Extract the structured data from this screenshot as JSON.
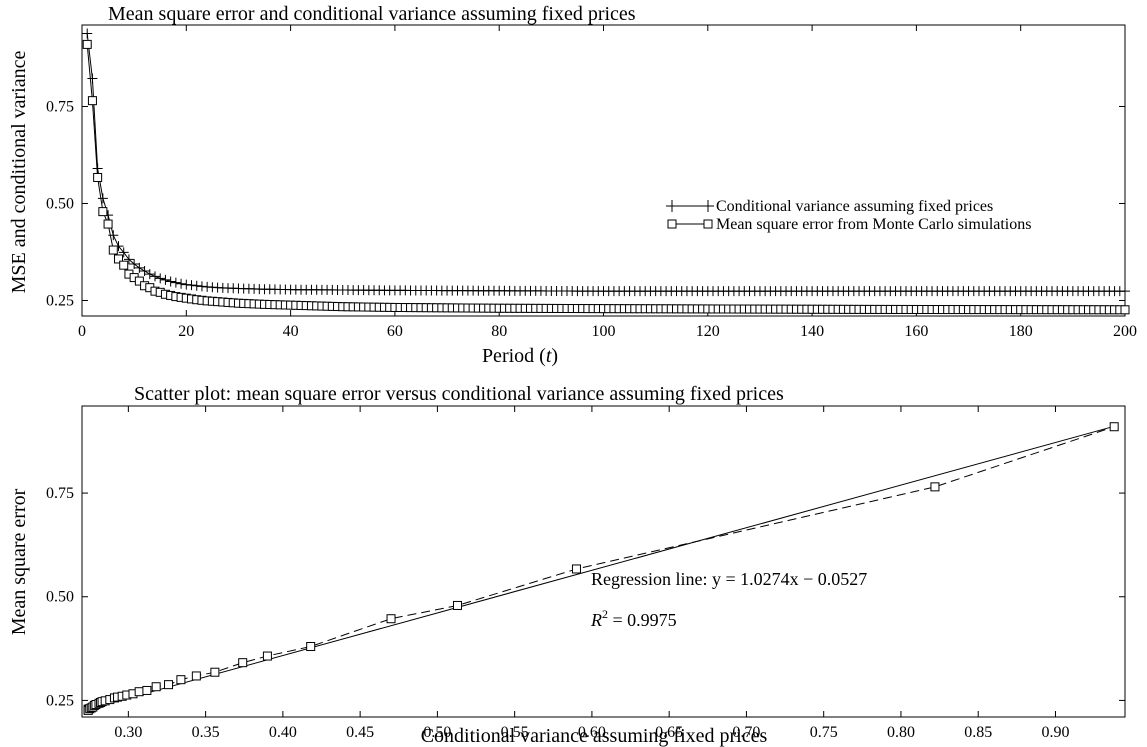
{
  "chart_data": [
    {
      "type": "line",
      "title": "Mean square error and conditional variance assuming fixed prices",
      "xlabel": "Period",
      "xlabel_var": "t",
      "ylabel": "MSE and conditional variance",
      "xlim": [
        0,
        200
      ],
      "ylim": [
        0.21,
        0.96
      ],
      "xticks": [
        0,
        20,
        40,
        60,
        80,
        100,
        120,
        140,
        160,
        180,
        200
      ],
      "yticks": [
        0.25,
        0.5,
        0.75
      ],
      "legend_position": "right",
      "series": [
        {
          "name": "Conditional variance assuming fixed prices",
          "marker": "plus",
          "values": [
            [
              1,
              0.938
            ],
            [
              2,
              0.822
            ],
            [
              3,
              0.59
            ],
            [
              4,
              0.513
            ],
            [
              5,
              0.47
            ],
            [
              6,
              0.418
            ],
            [
              7,
              0.39
            ],
            [
              8,
              0.374
            ],
            [
              9,
              0.356
            ],
            [
              10,
              0.344
            ],
            [
              11,
              0.334
            ],
            [
              12,
              0.326
            ],
            [
              13,
              0.318
            ],
            [
              14,
              0.312
            ],
            [
              15,
              0.307
            ],
            [
              16,
              0.303
            ],
            [
              17,
              0.299
            ],
            [
              18,
              0.296
            ],
            [
              19,
              0.293
            ],
            [
              20,
              0.291
            ],
            [
              22,
              0.288
            ],
            [
              24,
              0.285
            ],
            [
              26,
              0.283
            ],
            [
              28,
              0.282
            ],
            [
              30,
              0.281
            ],
            [
              35,
              0.279
            ],
            [
              40,
              0.278
            ],
            [
              50,
              0.277
            ],
            [
              60,
              0.276
            ],
            [
              80,
              0.275
            ],
            [
              100,
              0.274
            ],
            [
              150,
              0.274
            ],
            [
              200,
              0.274
            ]
          ]
        },
        {
          "name": "Mean square error from Monte Carlo simulations",
          "marker": "square",
          "values": [
            [
              1,
              0.91
            ],
            [
              2,
              0.765
            ],
            [
              3,
              0.567
            ],
            [
              4,
              0.479
            ],
            [
              5,
              0.447
            ],
            [
              6,
              0.38
            ],
            [
              7,
              0.357
            ],
            [
              8,
              0.341
            ],
            [
              9,
              0.318
            ],
            [
              10,
              0.309
            ],
            [
              11,
              0.3
            ],
            [
              12,
              0.288
            ],
            [
              13,
              0.283
            ],
            [
              14,
              0.274
            ],
            [
              15,
              0.271
            ],
            [
              16,
              0.266
            ],
            [
              17,
              0.263
            ],
            [
              18,
              0.26
            ],
            [
              19,
              0.258
            ],
            [
              20,
              0.256
            ],
            [
              22,
              0.252
            ],
            [
              24,
              0.249
            ],
            [
              26,
              0.247
            ],
            [
              28,
              0.245
            ],
            [
              30,
              0.243
            ],
            [
              35,
              0.24
            ],
            [
              40,
              0.238
            ],
            [
              50,
              0.234
            ],
            [
              60,
              0.232
            ],
            [
              80,
              0.23
            ],
            [
              100,
              0.229
            ],
            [
              150,
              0.227
            ],
            [
              200,
              0.226
            ]
          ]
        }
      ]
    },
    {
      "type": "scatter",
      "title": "Scatter plot: mean square error versus conditional variance assuming fixed prices",
      "xlabel": "Conditional variance assuming fixed prices",
      "ylabel": "Mean square error",
      "xlim": [
        0.27,
        0.945
      ],
      "ylim": [
        0.21,
        0.96
      ],
      "xticks": [
        0.3,
        0.35,
        0.4,
        0.45,
        0.5,
        0.55,
        0.6,
        0.65,
        0.7,
        0.75,
        0.8,
        0.85,
        0.9
      ],
      "yticks": [
        0.25,
        0.5,
        0.75
      ],
      "points": [
        [
          0.938,
          0.91
        ],
        [
          0.822,
          0.765
        ],
        [
          0.59,
          0.567
        ],
        [
          0.513,
          0.479
        ],
        [
          0.47,
          0.447
        ],
        [
          0.418,
          0.38
        ],
        [
          0.39,
          0.357
        ],
        [
          0.374,
          0.341
        ],
        [
          0.356,
          0.318
        ],
        [
          0.344,
          0.309
        ],
        [
          0.334,
          0.3
        ],
        [
          0.326,
          0.288
        ],
        [
          0.318,
          0.283
        ],
        [
          0.312,
          0.274
        ],
        [
          0.307,
          0.271
        ],
        [
          0.303,
          0.266
        ],
        [
          0.299,
          0.263
        ],
        [
          0.296,
          0.26
        ],
        [
          0.293,
          0.258
        ],
        [
          0.291,
          0.256
        ],
        [
          0.288,
          0.252
        ],
        [
          0.285,
          0.249
        ],
        [
          0.283,
          0.247
        ],
        [
          0.282,
          0.245
        ],
        [
          0.281,
          0.243
        ],
        [
          0.279,
          0.24
        ],
        [
          0.278,
          0.238
        ],
        [
          0.277,
          0.234
        ],
        [
          0.276,
          0.232
        ],
        [
          0.275,
          0.23
        ],
        [
          0.274,
          0.229
        ],
        [
          0.274,
          0.227
        ],
        [
          0.274,
          0.226
        ]
      ],
      "regression": {
        "slope": 1.0274,
        "intercept": -0.0527
      },
      "annotations": {
        "regression_label": "Regression line: y = 1.0274x − 0.0527",
        "r2_label": "R",
        "r2_sup": "2",
        "r2_value": " = 0.9975"
      }
    }
  ]
}
